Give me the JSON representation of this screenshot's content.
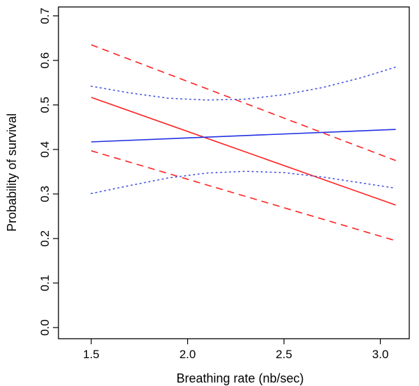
{
  "chart_data": {
    "type": "line",
    "title": "",
    "xlabel": "Breathing rate (nb/sec)",
    "ylabel": "Probability of survival",
    "xlim": [
      1.33,
      3.15
    ],
    "ylim": [
      -0.025,
      0.72
    ],
    "x_ticks": [
      1.5,
      2.0,
      2.5,
      3.0
    ],
    "x_tick_labels": [
      "1.5",
      "2.0",
      "2.5",
      "3.0"
    ],
    "y_ticks": [
      0.0,
      0.1,
      0.2,
      0.3,
      0.4,
      0.5,
      0.6,
      0.7
    ],
    "y_tick_labels": [
      "0.0",
      "0.1",
      "0.2",
      "0.3",
      "0.4",
      "0.5",
      "0.6",
      "0.7"
    ],
    "grid": false,
    "legend": "none",
    "series": [
      {
        "color": "#ff2020",
        "style": "solid",
        "x": [
          1.5,
          3.08
        ],
        "y": [
          0.517,
          0.275
        ]
      },
      {
        "color": "#ff2020",
        "style": "dashed",
        "x": [
          1.5,
          3.08
        ],
        "y": [
          0.635,
          0.375
        ]
      },
      {
        "color": "#ff2020",
        "style": "dashed",
        "x": [
          1.5,
          3.08
        ],
        "y": [
          0.397,
          0.195
        ]
      },
      {
        "color": "#2030e0",
        "style": "solid",
        "x": [
          1.5,
          3.08
        ],
        "y": [
          0.417,
          0.445
        ]
      },
      {
        "color": "#4050e0",
        "style": "dotted",
        "x": [
          1.5,
          1.7,
          1.9,
          2.1,
          2.3,
          2.5,
          2.7,
          2.9,
          3.08
        ],
        "y": [
          0.542,
          0.527,
          0.515,
          0.511,
          0.513,
          0.523,
          0.539,
          0.561,
          0.585
        ]
      },
      {
        "color": "#4050e0",
        "style": "dotted",
        "x": [
          1.5,
          1.7,
          1.9,
          2.1,
          2.3,
          2.5,
          2.7,
          2.9,
          3.08
        ],
        "y": [
          0.301,
          0.319,
          0.336,
          0.347,
          0.351,
          0.348,
          0.338,
          0.325,
          0.313
        ]
      }
    ]
  }
}
